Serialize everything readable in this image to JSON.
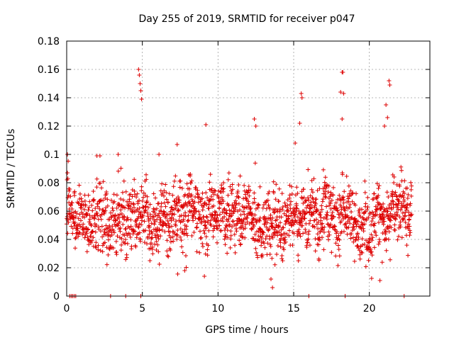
{
  "chart_data": {
    "type": "scatter",
    "title": "Day 255 of 2019, SRMTID for receiver p047",
    "xlabel": "GPS time / hours",
    "ylabel": "SRMTID / TECUs",
    "xlim": [
      0,
      24
    ],
    "ylim": [
      0,
      0.18
    ],
    "xticks": [
      0,
      5,
      10,
      15,
      20
    ],
    "xtick_labels": [
      "0",
      "5",
      "10",
      "15",
      "20"
    ],
    "yticks": [
      0,
      0.02,
      0.04,
      0.06,
      0.08,
      0.1,
      0.12,
      0.14,
      0.16,
      0.18
    ],
    "ytick_labels": [
      "0",
      "0.02",
      "0.04",
      "0.06",
      "0.08",
      "0.1",
      "0.12",
      "0.14",
      "0.16",
      "0.18"
    ],
    "grid": true,
    "marker": "+",
    "marker_color": "#dd0000",
    "axis_color": "#000000",
    "grid_color": "#a0a0a0",
    "series": [
      {
        "name": "SRMTID p047",
        "x_start": 0.0,
        "x_end": 22.8,
        "x_step": 0.0125,
        "baseline_mean": 0.055,
        "baseline_spread": 0.015,
        "spikes": [
          {
            "x": 0.05,
            "y": 0.1
          },
          {
            "x": 0.05,
            "y": 0.087
          },
          {
            "x": 0.08,
            "y": 0.083
          },
          {
            "x": 2.0,
            "y": 0.099
          },
          {
            "x": 2.2,
            "y": 0.099
          },
          {
            "x": 3.4,
            "y": 0.1
          },
          {
            "x": 4.75,
            "y": 0.16
          },
          {
            "x": 4.8,
            "y": 0.156
          },
          {
            "x": 4.85,
            "y": 0.15
          },
          {
            "x": 4.9,
            "y": 0.145
          },
          {
            "x": 4.95,
            "y": 0.139
          },
          {
            "x": 6.1,
            "y": 0.1
          },
          {
            "x": 7.3,
            "y": 0.107
          },
          {
            "x": 9.2,
            "y": 0.121
          },
          {
            "x": 12.4,
            "y": 0.125
          },
          {
            "x": 12.5,
            "y": 0.12
          },
          {
            "x": 15.1,
            "y": 0.108
          },
          {
            "x": 15.5,
            "y": 0.143
          },
          {
            "x": 15.55,
            "y": 0.14
          },
          {
            "x": 15.4,
            "y": 0.122
          },
          {
            "x": 18.2,
            "y": 0.158
          },
          {
            "x": 18.25,
            "y": 0.158
          },
          {
            "x": 18.1,
            "y": 0.144
          },
          {
            "x": 18.3,
            "y": 0.143
          },
          {
            "x": 18.2,
            "y": 0.125
          },
          {
            "x": 21.3,
            "y": 0.152
          },
          {
            "x": 21.35,
            "y": 0.149
          },
          {
            "x": 21.1,
            "y": 0.135
          },
          {
            "x": 21.2,
            "y": 0.126
          },
          {
            "x": 21.0,
            "y": 0.12
          }
        ],
        "dips": [
          {
            "x": 13.6,
            "y": 0.006
          },
          {
            "x": 13.5,
            "y": 0.012
          },
          {
            "x": 20.7,
            "y": 0.011
          },
          {
            "x": 9.1,
            "y": 0.014
          },
          {
            "x": 7.8,
            "y": 0.018
          }
        ],
        "zero_points_x": [
          0.2,
          0.3,
          0.4,
          0.5,
          0.6,
          2.9,
          3.9,
          4.9,
          16.0,
          18.4,
          22.3
        ]
      }
    ]
  }
}
